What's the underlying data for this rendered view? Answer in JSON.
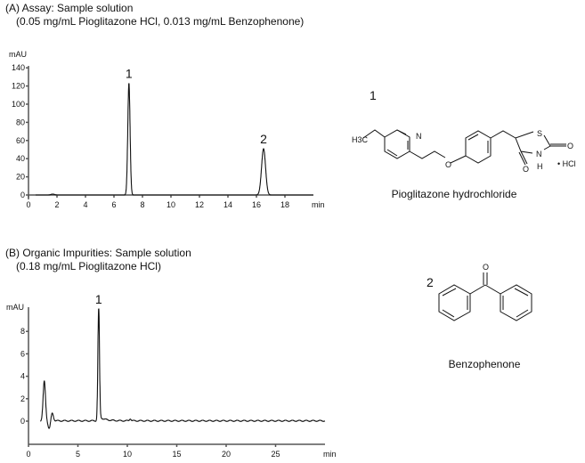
{
  "chart_data": [
    {
      "type": "line",
      "panel_title": "(A) Assay: Sample solution",
      "panel_subtitle": "(0.05 mg/mL Pioglitazone HCl, 0.013 mg/mL Benzophenone)",
      "ylabel": "mAU",
      "xlabel": "min",
      "xlim": [
        0,
        20
      ],
      "ylim": [
        0,
        140
      ],
      "xticks": [
        0,
        2,
        4,
        6,
        8,
        10,
        12,
        14,
        16,
        18
      ],
      "yticks": [
        0,
        20,
        40,
        60,
        80,
        100,
        120,
        140
      ],
      "peaks": [
        {
          "label": "",
          "rt": 1.7,
          "height": 1
        },
        {
          "label": "1",
          "rt": 7.05,
          "height": 123
        },
        {
          "label": "2",
          "rt": 16.5,
          "height": 51
        }
      ]
    },
    {
      "type": "line",
      "panel_title": "(B) Organic Impurities: Sample solution",
      "panel_subtitle": "(0.18 mg/mL Pioglitazone HCl)",
      "ylabel": "mAU",
      "xlabel": "min",
      "xlim": [
        0,
        30
      ],
      "ylim": [
        -2,
        10
      ],
      "xticks": [
        0,
        5,
        10,
        15,
        20,
        25
      ],
      "yticks": [
        0,
        2,
        4,
        6,
        8
      ],
      "peaks": [
        {
          "label": "",
          "rt": 1.6,
          "height": 3.5
        },
        {
          "label": "",
          "rt": 2.1,
          "height": -0.7
        },
        {
          "label": "",
          "rt": 2.4,
          "height": 0.7
        },
        {
          "label": "1",
          "rt": 7.1,
          "height": 10,
          "clipped": true
        },
        {
          "label": "",
          "rt": 10.3,
          "height": 0.2
        }
      ]
    }
  ],
  "structures": [
    {
      "number": "1",
      "name": "Pioglitazone hydrochloride",
      "atoms": {
        "h3c": "H3C",
        "n": "N",
        "o": "O",
        "s": "S",
        "o2": "O",
        "nh": "N",
        "h": "H",
        "o3": "O",
        "salt": "• HCl"
      }
    },
    {
      "number": "2",
      "name": "Benzophenone",
      "atoms": {
        "o": "O"
      }
    }
  ]
}
